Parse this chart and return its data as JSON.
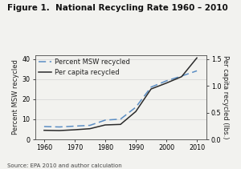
{
  "title": "Figure 1.  National Recycling Rate 1960 – 2010",
  "years": [
    1960,
    1965,
    1970,
    1975,
    1980,
    1985,
    1990,
    1995,
    2000,
    2005,
    2010
  ],
  "percent_msw": [
    6.4,
    6.2,
    6.6,
    7.0,
    9.6,
    10.1,
    16.0,
    26.0,
    29.1,
    31.5,
    34.1
  ],
  "per_capita": [
    0.17,
    0.165,
    0.18,
    0.2,
    0.27,
    0.28,
    0.52,
    0.94,
    1.05,
    1.17,
    1.52
  ],
  "left_ylim": [
    0,
    42
  ],
  "left_yticks": [
    0,
    10,
    20,
    30,
    40
  ],
  "right_ylim": [
    0,
    1.575
  ],
  "right_yticks": [
    0,
    0.5,
    1.0,
    1.5
  ],
  "xlim": [
    1957,
    2013
  ],
  "xticks": [
    1960,
    1970,
    1980,
    1990,
    2000,
    2010
  ],
  "source_text": "Source: EPA 2010 and author calculation",
  "legend_label1": "Percent MSW recycled",
  "legend_label2": "Per capita recycled",
  "line1_color": "#5b8ec4",
  "line2_color": "#2a2a2a",
  "background_color": "#f2f2ef",
  "title_fontsize": 7.5,
  "ylabel_fontsize": 6.0,
  "tick_fontsize": 5.8,
  "legend_fontsize": 6.0,
  "source_fontsize": 5.0
}
